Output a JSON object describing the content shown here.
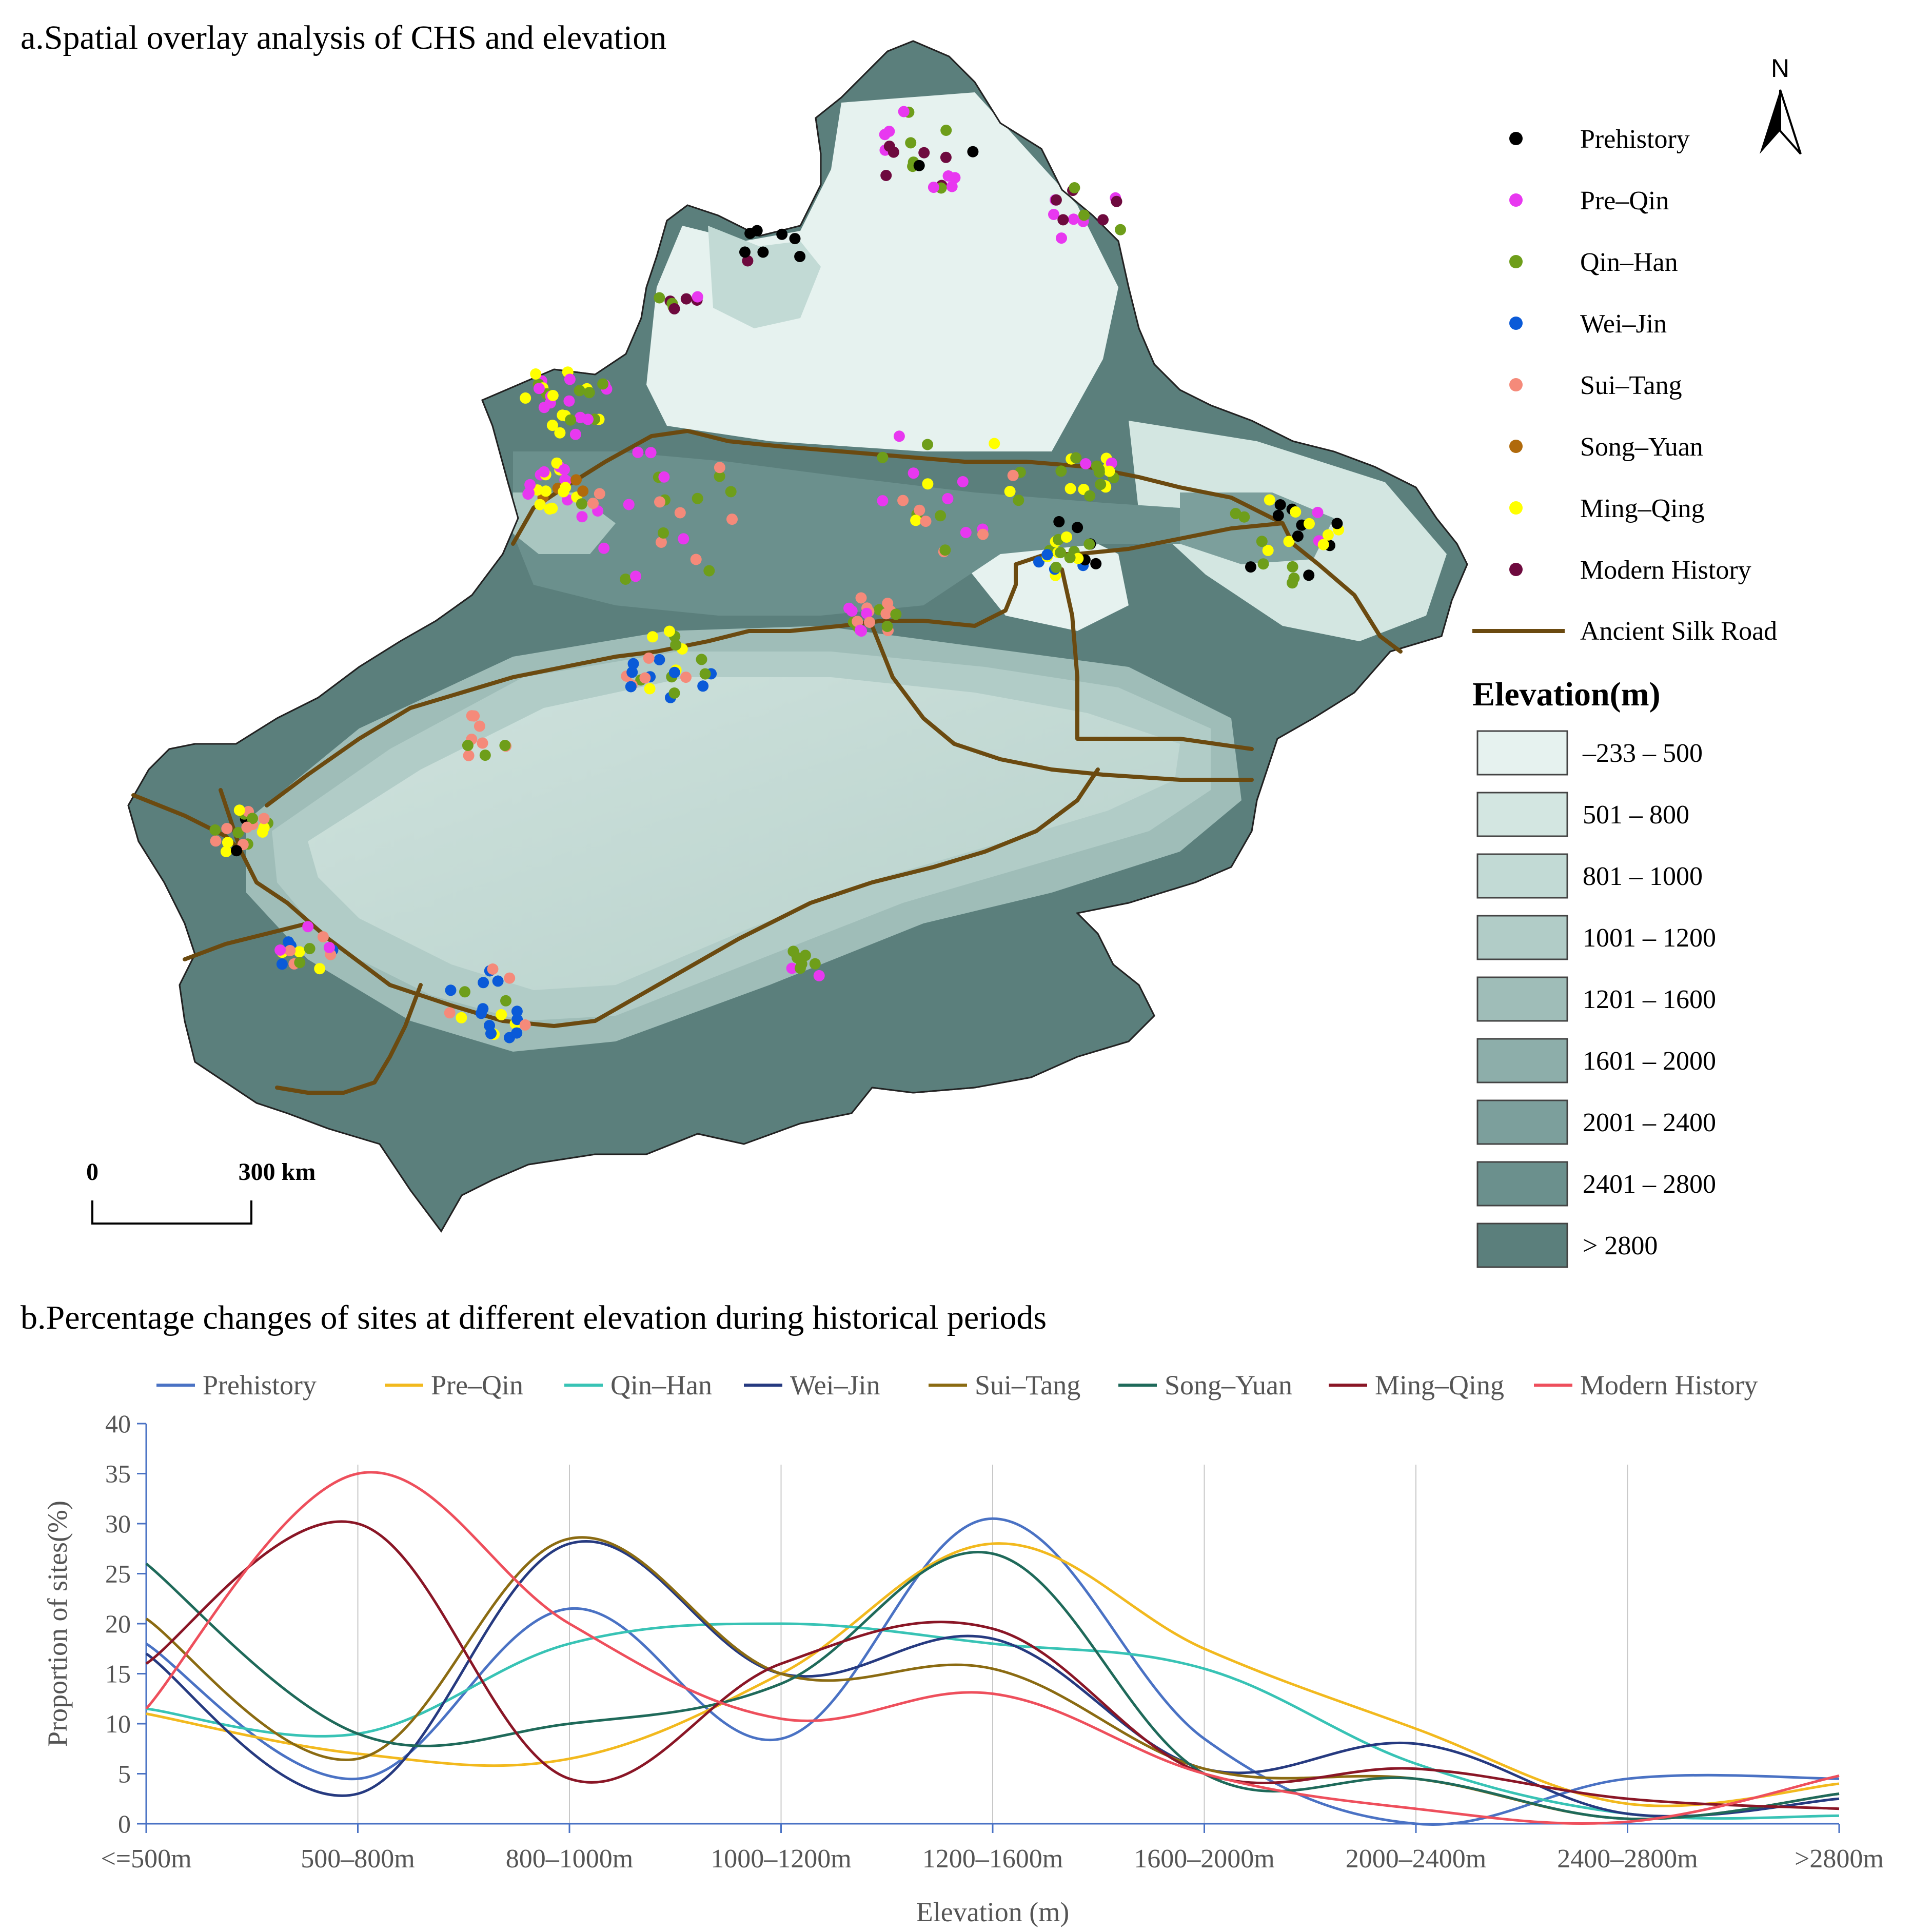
{
  "panel_a": {
    "title": "a.Spatial overlay analysis of CHS and elevation",
    "north_label": "N",
    "scale_start": "0",
    "scale_end": "300 km",
    "legend_periods": [
      {
        "label": "Prehistory",
        "color": "#000000"
      },
      {
        "label": "Pre–Qin",
        "color": "#e838f0"
      },
      {
        "label": "Qin–Han",
        "color": "#6e9e1a"
      },
      {
        "label": "Wei–Jin",
        "color": "#0a5ad8"
      },
      {
        "label": "Sui–Tang",
        "color": "#f58a7a"
      },
      {
        "label": "Song–Yuan",
        "color": "#b06a0c"
      },
      {
        "label": "Ming–Qing",
        "color": "#ffff00"
      },
      {
        "label": "Modern History",
        "color": "#6e0a3e"
      }
    ],
    "silk_road_label": "Ancient Silk Road",
    "silk_road_color": "#6b4a10",
    "elevation_title": "Elevation(m)",
    "elevation_classes": [
      {
        "label": "–233 – 500",
        "color": "#e6f2ef"
      },
      {
        "label": "501 – 800",
        "color": "#d3e6e1"
      },
      {
        "label": "801 – 1000",
        "color": "#c2dad5"
      },
      {
        "label": "1001 – 1200",
        "color": "#b1ccc7"
      },
      {
        "label": "1201 – 1600",
        "color": "#9fbdb8"
      },
      {
        "label": "1601 – 2000",
        "color": "#8daeaa"
      },
      {
        "label": "2001 – 2400",
        "color": "#7c9f9c"
      },
      {
        "label": "2401 – 2800",
        "color": "#6b908d"
      },
      {
        "label": "> 2800",
        "color": "#5b7f7c"
      }
    ]
  },
  "chart_data": {
    "type": "line",
    "title": "b.Percentage changes of sites at different elevation during historical periods",
    "xlabel": "Elevation (m)",
    "ylabel": "Proportion of sites(%)",
    "ylim": [
      0,
      40
    ],
    "yticks": [
      0,
      5,
      10,
      15,
      20,
      25,
      30,
      35,
      40
    ],
    "categories": [
      "<=500m",
      "500–800m",
      "800–1000m",
      "1000–1200m",
      "1200–1600m",
      "1600–2000m",
      "2000–2400m",
      "2400–2800m",
      ">2800m"
    ],
    "legend_position": "top",
    "series": [
      {
        "name": "Prehistory",
        "color": "#4a72c4",
        "values": [
          18,
          4.5,
          21.5,
          8.5,
          30.5,
          8.5,
          0,
          4.5,
          4.5
        ]
      },
      {
        "name": "Pre–Qin",
        "color": "#f2b91e",
        "values": [
          11,
          7,
          6.5,
          15,
          28,
          17.5,
          9.5,
          2,
          4
        ]
      },
      {
        "name": "Qin–Han",
        "color": "#38c3b5",
        "values": [
          11.5,
          9,
          18,
          20,
          18,
          15.5,
          6,
          1,
          0.8
        ]
      },
      {
        "name": "Wei–Jin",
        "color": "#263a80",
        "values": [
          17,
          3,
          28,
          15,
          18.5,
          5.5,
          8,
          1,
          2.5
        ]
      },
      {
        "name": "Sui–Tang",
        "color": "#8b6b12",
        "values": [
          20.5,
          6.5,
          28.5,
          15,
          15.5,
          5.5,
          4.5,
          0.5,
          3
        ]
      },
      {
        "name": "Song–Yuan",
        "color": "#1f6a5a",
        "values": [
          26,
          9,
          10,
          14,
          27,
          5,
          4.5,
          0.5,
          3
        ]
      },
      {
        "name": "Ming–Qing",
        "color": "#8a1626",
        "values": [
          16,
          30,
          4.5,
          16,
          19.5,
          5,
          5.5,
          2.5,
          1.5
        ]
      },
      {
        "name": "Modern History",
        "color": "#ee4f5c",
        "values": [
          11.5,
          35,
          20,
          10.5,
          13,
          5,
          1.5,
          0.2,
          4.8
        ]
      }
    ]
  }
}
